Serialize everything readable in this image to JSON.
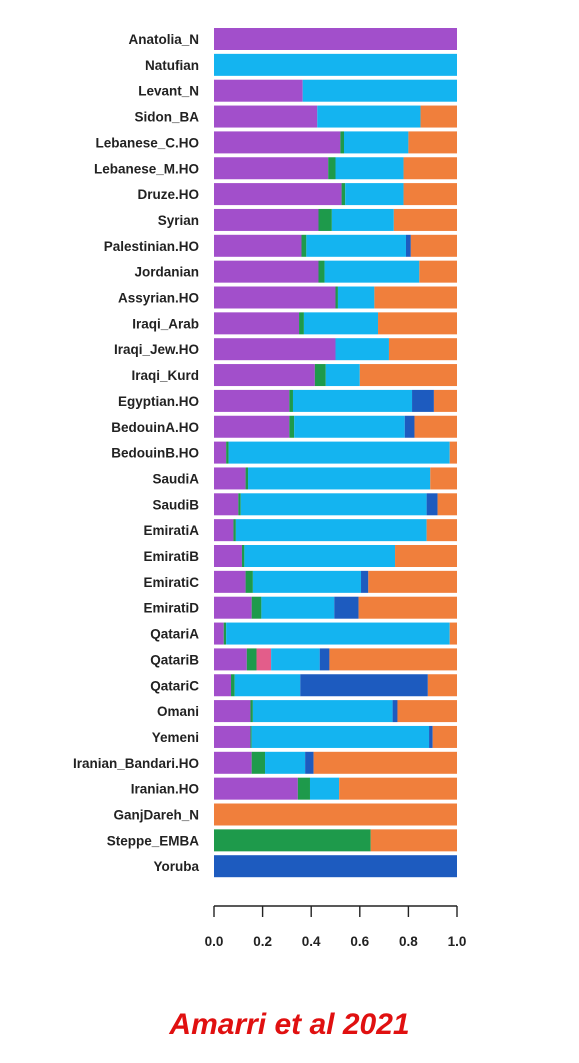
{
  "caption": "Amarri et al 2021",
  "chart_data": {
    "type": "bar",
    "orientation": "horizontal",
    "stacked": true,
    "title": "",
    "xlabel": "",
    "ylabel": "",
    "xlim": [
      0,
      1
    ],
    "x_ticks": [
      0.0,
      0.2,
      0.4,
      0.6,
      0.8,
      1.0
    ],
    "x_tick_labels": [
      "0.0",
      "0.2",
      "0.4",
      "0.6",
      "0.8",
      "1.0"
    ],
    "grid": false,
    "legend": "none",
    "colors": {
      "purple": "#a24fcb",
      "green": "#1e9a4b",
      "pink": "#e35d8a",
      "lightblue": "#14b4f0",
      "darkblue": "#1d5bbf",
      "orange": "#f07f3c"
    },
    "component_order": [
      "purple",
      "green",
      "pink",
      "lightblue",
      "darkblue",
      "orange"
    ],
    "categories": [
      "Anatolia_N",
      "Natufian",
      "Levant_N",
      "Sidon_BA",
      "Lebanese_C.HO",
      "Lebanese_M.HO",
      "Druze.HO",
      "Syrian",
      "Palestinian.HO",
      "Jordanian",
      "Assyrian.HO",
      "Iraqi_Arab",
      "Iraqi_Jew.HO",
      "Iraqi_Kurd",
      "Egyptian.HO",
      "BedouinA.HO",
      "BedouinB.HO",
      "SaudiA",
      "SaudiB",
      "EmiratiA",
      "EmiratiB",
      "EmiratiC",
      "EmiratiD",
      "QatariA",
      "QatariB",
      "QatariC",
      "Omani",
      "Yemeni",
      "Iranian_Bandari.HO",
      "Iranian.HO",
      "GanjDareh_N",
      "Steppe_EMBA",
      "Yoruba"
    ],
    "series": [
      {
        "color_key": "purple",
        "values": [
          1.0,
          0,
          0.365,
          0.425,
          0.52,
          0.47,
          0.525,
          0.43,
          0.36,
          0.43,
          0.5,
          0.35,
          0.5,
          0.415,
          0.31,
          0.31,
          0.05,
          0.13,
          0.1,
          0.08,
          0.115,
          0.13,
          0.155,
          0.04,
          0.135,
          0.07,
          0.15,
          0.15,
          0.155,
          0.345,
          0,
          0,
          0
        ]
      },
      {
        "color_key": "green",
        "values": [
          0,
          0,
          0,
          0,
          0.015,
          0.03,
          0.015,
          0.055,
          0.02,
          0.025,
          0.01,
          0.02,
          0,
          0.045,
          0.015,
          0.02,
          0.01,
          0.01,
          0.01,
          0.01,
          0.01,
          0.03,
          0.04,
          0.01,
          0.04,
          0.015,
          0.01,
          0.005,
          0.055,
          0.05,
          0,
          0.645,
          0
        ]
      },
      {
        "color_key": "pink",
        "values": [
          0,
          0,
          0,
          0,
          0,
          0,
          0,
          0,
          0,
          0,
          0,
          0,
          0,
          0,
          0,
          0,
          0,
          0,
          0,
          0,
          0,
          0,
          0,
          0,
          0.06,
          0,
          0,
          0,
          0,
          0,
          0,
          0,
          0
        ]
      },
      {
        "color_key": "lightblue",
        "values": [
          0,
          1.0,
          0.635,
          0.425,
          0.265,
          0.28,
          0.24,
          0.255,
          0.41,
          0.39,
          0.15,
          0.305,
          0.22,
          0.14,
          0.49,
          0.455,
          0.91,
          0.75,
          0.765,
          0.785,
          0.62,
          0.445,
          0.3,
          0.92,
          0.2,
          0.27,
          0.575,
          0.73,
          0.165,
          0.12,
          0,
          0,
          0
        ]
      },
      {
        "color_key": "darkblue",
        "values": [
          0,
          0,
          0,
          0,
          0,
          0,
          0,
          0,
          0.02,
          0,
          0,
          0,
          0,
          0,
          0.09,
          0.04,
          0,
          0,
          0.045,
          0,
          0,
          0.03,
          0.1,
          0,
          0.04,
          0.525,
          0.02,
          0.015,
          0.035,
          0,
          0,
          0,
          1.0
        ]
      },
      {
        "color_key": "orange",
        "values": [
          0,
          0,
          0,
          0.15,
          0.2,
          0.22,
          0.22,
          0.26,
          0.19,
          0.155,
          0.34,
          0.325,
          0.28,
          0.4,
          0.095,
          0.175,
          0.03,
          0.11,
          0.08,
          0.125,
          0.255,
          0.365,
          0.405,
          0.03,
          0.525,
          0.12,
          0.245,
          0.1,
          0.59,
          0.485,
          1.0,
          0.355,
          0
        ]
      }
    ]
  }
}
